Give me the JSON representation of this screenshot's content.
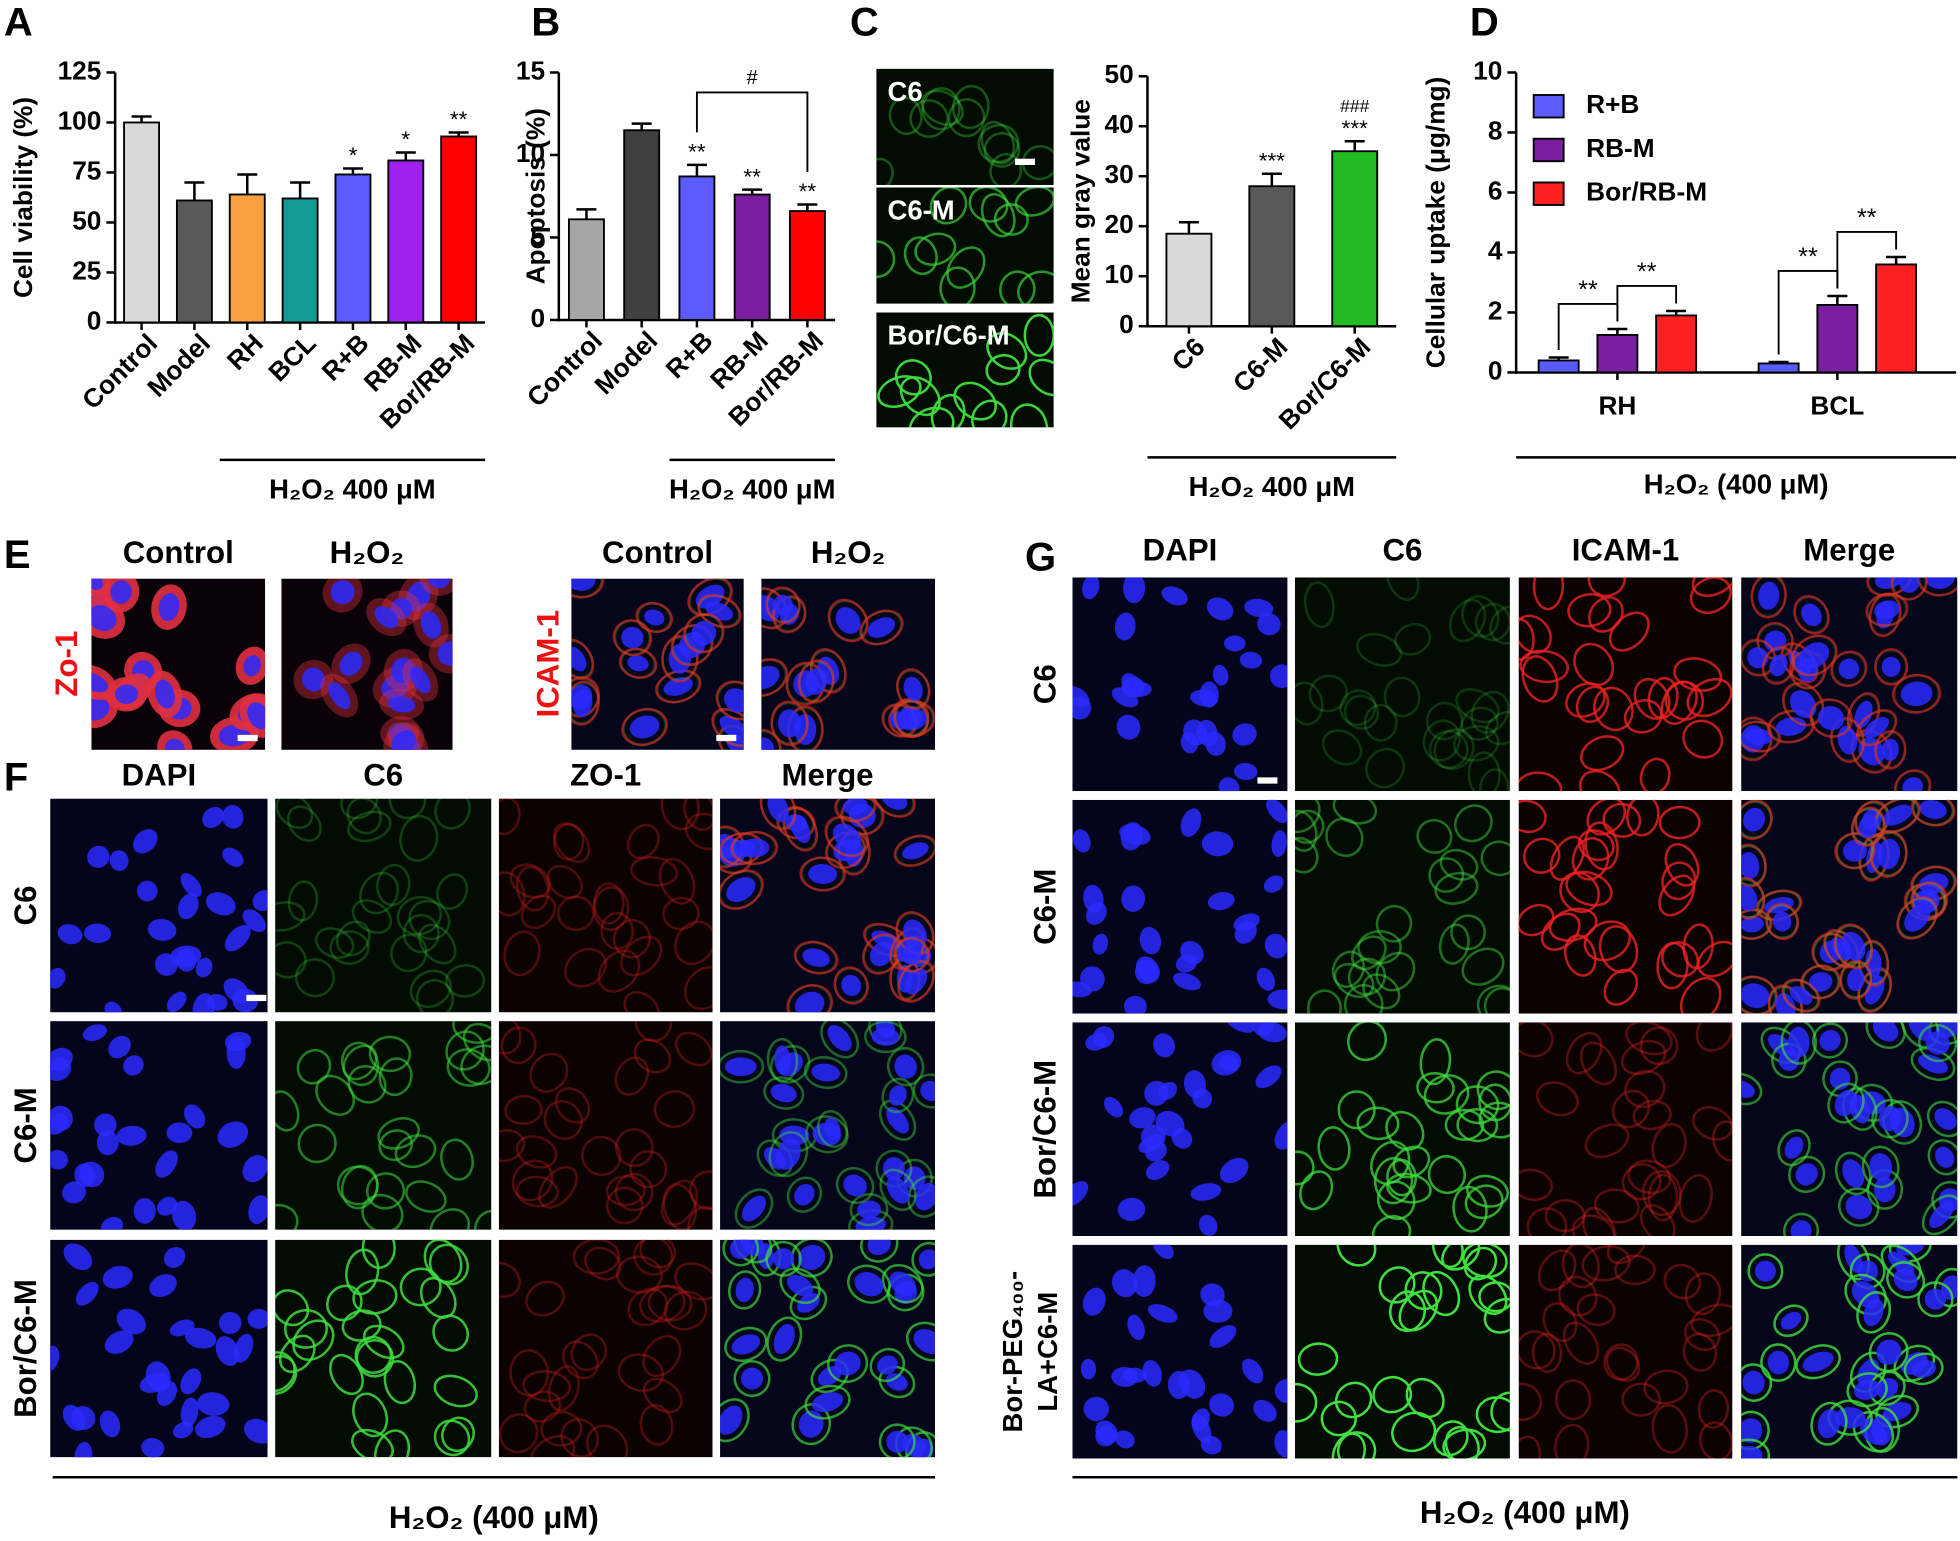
{
  "chart_data": [
    {
      "type": "bar",
      "ylabel": "Cell viability (%)",
      "categories": [
        "Control",
        "Model",
        "RH",
        "BCL",
        "R+B",
        "RB-M",
        "Bor/RB-M"
      ],
      "values": [
        100,
        61,
        64,
        62,
        74,
        81,
        93
      ],
      "errors": [
        3,
        9,
        10,
        8,
        3,
        4,
        2
      ],
      "colors": [
        "#d9d9d9",
        "#595959",
        "#f9a040",
        "#139c96",
        "#5b5bff",
        "#a020f0",
        "#ff0000"
      ],
      "ylim": [
        0,
        125
      ],
      "yticks": [
        0,
        25,
        50,
        75,
        100,
        125
      ],
      "annotations": [
        null,
        null,
        null,
        null,
        "*",
        "*",
        "**"
      ],
      "footer": "H₂O₂ 400 μM",
      "footer_from": "RH"
    },
    {
      "type": "bar",
      "ylabel": "Apoptosis (%)",
      "categories": [
        "Control",
        "Model",
        "R+B",
        "RB-M",
        "Bor/RB-M"
      ],
      "values": [
        6.1,
        11.5,
        8.7,
        7.6,
        6.6
      ],
      "errors": [
        0.6,
        0.4,
        0.7,
        0.3,
        0.4
      ],
      "colors": [
        "#a6a6a6",
        "#404040",
        "#5b5bff",
        "#7a1fa0",
        "#ff0000"
      ],
      "ylim": [
        0,
        15
      ],
      "yticks": [
        0,
        5,
        10,
        15
      ],
      "annotations": [
        null,
        null,
        "**",
        "**",
        "**"
      ],
      "brackets": [
        {
          "from": "R+B",
          "to": "Bor/RB-M",
          "label": "#"
        }
      ],
      "footer": "H₂O₂ 400 μM",
      "footer_from": "R+B"
    },
    {
      "type": "bar",
      "ylabel": "Mean gray value",
      "categories": [
        "C6",
        "C6-M",
        "Bor/C6-M"
      ],
      "values": [
        18.5,
        28,
        35
      ],
      "errors": [
        2.3,
        2.5,
        2
      ],
      "colors": [
        "#d9d9d9",
        "#595959",
        "#22bb22"
      ],
      "ylim": [
        0,
        50
      ],
      "yticks": [
        0,
        10,
        20,
        30,
        40,
        50
      ],
      "annotations": [
        null,
        "***",
        "***"
      ],
      "hash_annotations": [
        null,
        null,
        "###"
      ],
      "image_labels": [
        "C6",
        "C6-M",
        "Bor/C6-M"
      ],
      "footer": "H₂O₂ 400 μM"
    },
    {
      "type": "grouped_bar",
      "ylabel": "Cellular uptake (μg/mg)",
      "categories": [
        "RH",
        "BCL"
      ],
      "series": [
        {
          "name": "R+B",
          "color": "#5b5bff",
          "values": [
            0.4,
            0.3
          ],
          "errors": [
            0.1,
            0.05
          ]
        },
        {
          "name": "RB-M",
          "color": "#7a1fa0",
          "values": [
            1.25,
            2.25
          ],
          "errors": [
            0.2,
            0.3
          ]
        },
        {
          "name": "Bor/RB-M",
          "color": "#ff2020",
          "values": [
            1.9,
            3.6
          ],
          "errors": [
            0.15,
            0.25
          ]
        }
      ],
      "ylim": [
        0,
        10
      ],
      "yticks": [
        0,
        2,
        4,
        6,
        8,
        10
      ],
      "legend": "top-left",
      "brackets": [
        {
          "group": "RH",
          "from": "R+B",
          "to": "RB-M",
          "label": "**"
        },
        {
          "group": "RH",
          "from": "RB-M",
          "to": "Bor/RB-M",
          "label": "**"
        },
        {
          "group": "BCL",
          "from": "R+B",
          "to": "RB-M",
          "label": "**"
        },
        {
          "group": "BCL",
          "from": "RB-M",
          "to": "Bor/RB-M",
          "label": "**"
        }
      ],
      "footer": "H₂O₂ (400 μM)"
    }
  ],
  "figure": {
    "panel_labels": [
      "A",
      "B",
      "C",
      "D",
      "E",
      "F",
      "G"
    ],
    "E": {
      "col_labels": [
        "Control",
        "H₂O₂",
        "Control",
        "H₂O₂"
      ],
      "row_labels": [
        "Zo-1",
        "ICAM-1"
      ]
    },
    "F": {
      "col_labels": [
        "DAPI",
        "C6",
        "ZO-1",
        "Merge"
      ],
      "row_labels": [
        "C6",
        "C6-M",
        "Bor/C6-M"
      ],
      "footer": "H₂O₂ (400 μM)"
    },
    "G": {
      "col_labels": [
        "DAPI",
        "C6",
        "ICAM-1",
        "Merge"
      ],
      "row_labels": [
        "C6",
        "C6-M",
        "Bor/C6-M",
        [
          "Bor-PEG₄₀₀-",
          "LA+C6-M"
        ]
      ],
      "footer": "H₂O₂ (400 μM)"
    }
  }
}
